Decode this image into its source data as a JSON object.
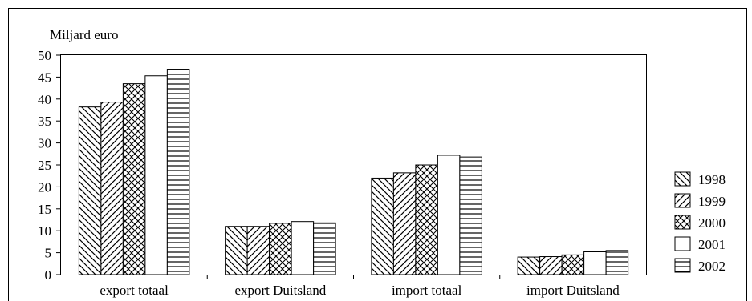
{
  "chart_data": {
    "type": "bar",
    "ylabel": "Miljard euro",
    "ylim": [
      0,
      50
    ],
    "yticks": [
      0,
      5,
      10,
      15,
      20,
      25,
      30,
      35,
      40,
      45,
      50
    ],
    "categories": [
      "export totaal",
      "export Duitsland",
      "import totaal",
      "import Duitsland"
    ],
    "series": [
      {
        "name": "1998",
        "pattern": "diagonal-down",
        "values": [
          38.2,
          11.0,
          22.0,
          4.0
        ]
      },
      {
        "name": "1999",
        "pattern": "diagonal-up",
        "values": [
          39.3,
          11.0,
          23.2,
          4.1
        ]
      },
      {
        "name": "2000",
        "pattern": "crosshatch",
        "values": [
          43.5,
          11.7,
          25.0,
          4.5
        ]
      },
      {
        "name": "2001",
        "pattern": "empty",
        "values": [
          45.3,
          12.1,
          27.2,
          5.2
        ]
      },
      {
        "name": "2002",
        "pattern": "horizontal",
        "values": [
          46.8,
          11.8,
          26.8,
          5.5
        ]
      }
    ],
    "legend_position": "right",
    "grid": false,
    "colors": {
      "stroke": "#000000",
      "fill": "#ffffff"
    }
  }
}
